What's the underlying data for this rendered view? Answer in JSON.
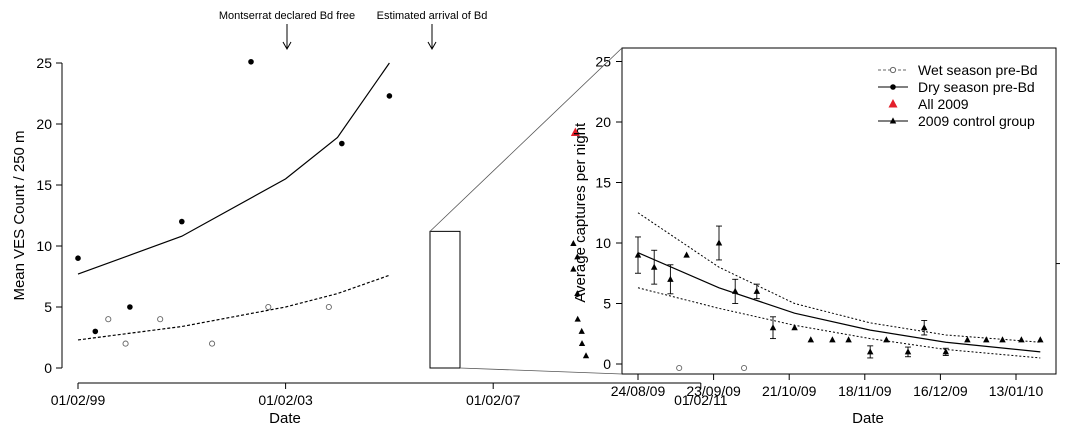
{
  "chart_data": [
    {
      "type": "scatter",
      "xlabel": "Date",
      "ylabel": "Mean VES Count / 250 m",
      "x_ticks": [
        "01/02/99",
        "01/02/03",
        "01/02/07",
        "01/02/11"
      ],
      "y_ticks": [
        "0",
        "5",
        "10",
        "15",
        "20",
        "25"
      ],
      "ylim": [
        0,
        25
      ],
      "annotations": [
        "Montserrat declared Bd free",
        "Estimated arrival of Bd"
      ],
      "series": [
        {
          "key": "dry",
          "marker": "filled-circle",
          "points": [
            {
              "x": "1999-02",
              "y": 9.0
            },
            {
              "x": "1999-06",
              "y": 3.0
            },
            {
              "x": "2000-02",
              "y": 5.0
            },
            {
              "x": "2001-02",
              "y": 12.0
            },
            {
              "x": "2002-06",
              "y": 25.1
            },
            {
              "x": "2004-03",
              "y": 18.4
            },
            {
              "x": "2005-02",
              "y": 22.3
            }
          ],
          "fit": [
            {
              "x": "1999-02",
              "y": 7.7
            },
            {
              "x": "2001-02",
              "y": 10.8
            },
            {
              "x": "2003-02",
              "y": 15.5
            },
            {
              "x": "2004-02",
              "y": 18.9
            },
            {
              "x": "2005-02",
              "y": 25.0
            }
          ]
        },
        {
          "key": "wet",
          "marker": "open-circle",
          "points": [
            {
              "x": "1999-09",
              "y": 4.0
            },
            {
              "x": "2000-01",
              "y": 2.0
            },
            {
              "x": "2000-09",
              "y": 4.0
            },
            {
              "x": "2001-09",
              "y": 2.0
            },
            {
              "x": "2002-10",
              "y": 5.0
            },
            {
              "x": "2003-12",
              "y": 5.0
            },
            {
              "x": "2010-09",
              "y": 0.0
            },
            {
              "x": "2011-12",
              "y": 0.0
            }
          ],
          "fit": [
            {
              "x": "1999-02",
              "y": 2.3
            },
            {
              "x": "2001-02",
              "y": 3.4
            },
            {
              "x": "2003-02",
              "y": 5.0
            },
            {
              "x": "2004-02",
              "y": 6.1
            },
            {
              "x": "2005-02",
              "y": 7.6
            }
          ]
        },
        {
          "key": "all2009",
          "marker": "red-triangle",
          "color": "#e3202b",
          "points": [
            {
              "x": "2008-09",
              "y": 19.3
            }
          ]
        },
        {
          "key": "control2009",
          "marker": "filled-triangle",
          "points": [
            {
              "x": "2008-09",
              "y": 10.2
            },
            {
              "x": "2008-09",
              "y": 9.1
            },
            {
              "x": "2008-09",
              "y": 8.1
            },
            {
              "x": "2008-09",
              "y": 6.1
            },
            {
              "x": "2008-10",
              "y": 4.0
            },
            {
              "x": "2008-10",
              "y": 3.0
            },
            {
              "x": "2008-11",
              "y": 2.0
            },
            {
              "x": "2008-11",
              "y": 1.0
            }
          ]
        }
      ]
    },
    {
      "type": "line",
      "xlabel": "Date",
      "ylabel": "Average captures per night",
      "x_ticks": [
        "24/08/09",
        "23/09/09",
        "21/10/09",
        "18/11/09",
        "16/12/09",
        "13/01/10"
      ],
      "y_ticks": [
        "0",
        "5",
        "10",
        "15",
        "20",
        "25"
      ],
      "ylim": [
        0,
        25
      ],
      "legend_position": "top-right",
      "legend": [
        {
          "label": "Wet season pre-Bd",
          "style": "dashed-open-circle"
        },
        {
          "label": "Dry season pre-Bd",
          "style": "solid-filled-circle"
        },
        {
          "label": "All 2009",
          "style": "red-triangle",
          "color": "#e3202b"
        },
        {
          "label": "2009 control group",
          "style": "solid-filled-triangle"
        }
      ],
      "points": [
        {
          "x": "2009-08-24",
          "y": 9.0,
          "err": 1.5
        },
        {
          "x": "2009-08-30",
          "y": 8.0,
          "err": 1.4
        },
        {
          "x": "2009-09-05",
          "y": 7.0,
          "err": 1.2
        },
        {
          "x": "2009-09-11",
          "y": 9.0,
          "err": 0.0
        },
        {
          "x": "2009-09-23",
          "y": 10.0,
          "err": 1.4
        },
        {
          "x": "2009-09-29",
          "y": 6.0,
          "err": 1.0
        },
        {
          "x": "2009-10-07",
          "y": 6.0,
          "err": 0.6
        },
        {
          "x": "2009-10-13",
          "y": 3.0,
          "err": 0.9
        },
        {
          "x": "2009-10-21",
          "y": 3.0,
          "err": 0.0
        },
        {
          "x": "2009-10-27",
          "y": 2.0,
          "err": 0.0
        },
        {
          "x": "2009-11-04",
          "y": 2.0,
          "err": 0.0
        },
        {
          "x": "2009-11-10",
          "y": 2.0,
          "err": 0.0
        },
        {
          "x": "2009-11-18",
          "y": 1.0,
          "err": 0.5
        },
        {
          "x": "2009-11-24",
          "y": 2.0,
          "err": 0.0
        },
        {
          "x": "2009-12-02",
          "y": 1.0,
          "err": 0.4
        },
        {
          "x": "2009-12-08",
          "y": 3.0,
          "err": 0.6
        },
        {
          "x": "2009-12-16",
          "y": 1.0,
          "err": 0.3
        },
        {
          "x": "2009-12-24",
          "y": 2.0,
          "err": 0.0
        },
        {
          "x": "2009-12-31",
          "y": 2.0,
          "err": 0.0
        },
        {
          "x": "2010-01-06",
          "y": 2.0,
          "err": 0.0
        },
        {
          "x": "2010-01-13",
          "y": 2.0,
          "err": 0.0
        },
        {
          "x": "2010-01-20",
          "y": 2.0,
          "err": 0.0
        }
      ],
      "fit": [
        {
          "x": "2009-08-24",
          "y": 9.2
        },
        {
          "x": "2009-09-23",
          "y": 6.3
        },
        {
          "x": "2009-10-21",
          "y": 4.2
        },
        {
          "x": "2009-11-18",
          "y": 2.8
        },
        {
          "x": "2009-12-16",
          "y": 1.8
        },
        {
          "x": "2010-01-20",
          "y": 1.0
        }
      ],
      "ci_upper": [
        {
          "x": "2009-08-24",
          "y": 12.5
        },
        {
          "x": "2009-09-23",
          "y": 8.0
        },
        {
          "x": "2009-10-21",
          "y": 5.0
        },
        {
          "x": "2009-11-18",
          "y": 3.4
        },
        {
          "x": "2009-12-16",
          "y": 2.4
        },
        {
          "x": "2010-01-20",
          "y": 1.8
        }
      ],
      "ci_lower": [
        {
          "x": "2009-08-24",
          "y": 6.3
        },
        {
          "x": "2009-09-23",
          "y": 4.6
        },
        {
          "x": "2009-10-21",
          "y": 3.2
        },
        {
          "x": "2009-11-18",
          "y": 2.1
        },
        {
          "x": "2009-12-16",
          "y": 1.2
        },
        {
          "x": "2010-01-20",
          "y": 0.5
        }
      ]
    }
  ]
}
